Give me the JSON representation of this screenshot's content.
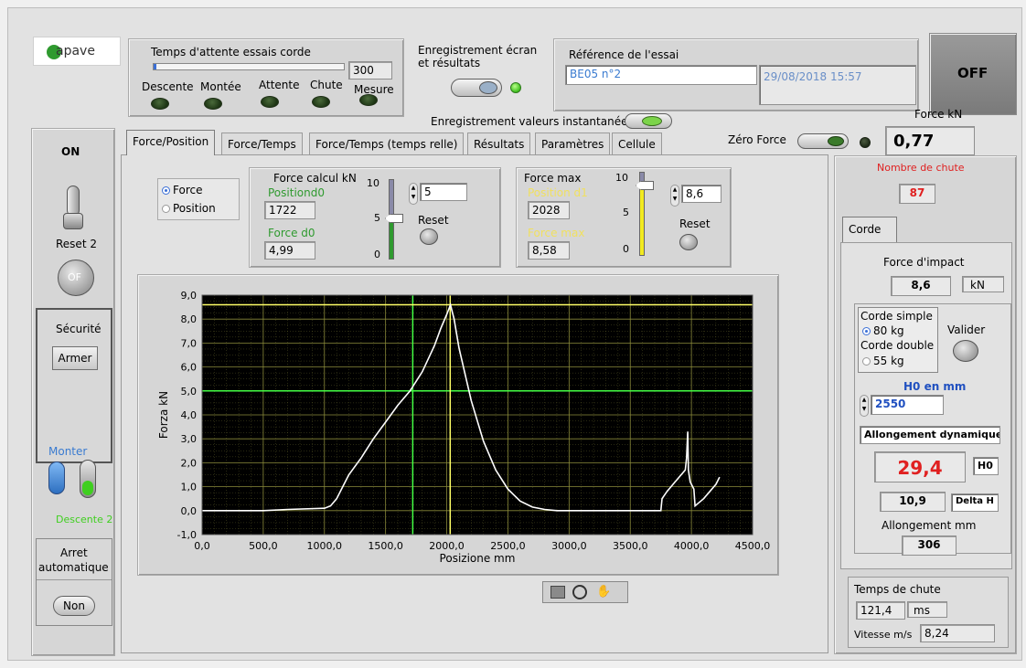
{
  "logo": {
    "text": "apave"
  },
  "wait_panel": {
    "title": "Temps d'attente essais corde",
    "value": "300",
    "leds": [
      "Descente",
      "Montée",
      "Attente",
      "Chute",
      "Mesure"
    ]
  },
  "recording": {
    "title_line1": "Enregistrement écran",
    "title_line2": "et résultats",
    "instant_label": "Enregistrement valeurs instantanées"
  },
  "reference": {
    "title": "Référence de l'essai",
    "code": "BE05 n°2",
    "datetime": "29/08/2018 15:57"
  },
  "off_button": "OFF",
  "zero_force": {
    "label": "Zéro Force"
  },
  "force_readout": {
    "label": "Force kN",
    "value": "0,77"
  },
  "left_panel": {
    "on_label": "ON",
    "reset_label": "Reset 2",
    "of_label": "OF",
    "security_label": "Sécurité",
    "arm_button": "Armer",
    "monter_label": "Monter",
    "descente_label": "Descente 2",
    "auto_stop_line1": "Arret",
    "auto_stop_line2": "automatique",
    "auto_stop_button": "Non"
  },
  "tabs": [
    "Force/Position",
    "Force/Temps",
    "Force/Temps (temps relle)",
    "Résultats",
    "Paramètres",
    "Cellule"
  ],
  "active_tab": 0,
  "mode": {
    "options": [
      "Force",
      "Position"
    ],
    "selected": "Force"
  },
  "force_calc": {
    "title": "Force calcul  kN",
    "position_label": "Positiond0",
    "position_value": "1722",
    "force_label": "Force d0",
    "force_value": "4,99",
    "slider_ticks": [
      "10",
      "5",
      "0"
    ],
    "slider_level": 0.5,
    "setpoint": "5",
    "reset_label": "Reset"
  },
  "force_max": {
    "title": "Force  max",
    "position_label": "Position d1",
    "position_value": "2028",
    "force_label": "Force max",
    "force_value": "8,58",
    "slider_ticks": [
      "10",
      "5",
      "0"
    ],
    "slider_level": 0.86,
    "setpoint": "8,6",
    "reset_label": "Reset"
  },
  "right_panel": {
    "drops_label": "Nombre de chute",
    "drops_value": "87",
    "tab_label": "Corde",
    "impact_label": "Force d'impact",
    "impact_value": "8,6",
    "impact_unit": "kN",
    "rope_single": "Corde simple",
    "rope_single_mass": "80 kg",
    "rope_double": "Corde double",
    "rope_double_mass": "55 kg",
    "rope_selected": "80 kg",
    "validate_label": "Valider",
    "h0_label": "H0 en mm",
    "h0_value": "2550",
    "elong_dyn_label": "Allongement dynamique",
    "elong_dyn_value": "29,4",
    "h0_unit": "H0",
    "delta_value": "10,9",
    "delta_unit": "Delta H",
    "elong_mm_label": "Allongement mm",
    "elong_mm_value": "306",
    "fall_time_label": "Temps de chute",
    "fall_time_value": "121,4",
    "fall_time_unit": "ms",
    "speed_label": "Vitesse m/s",
    "speed_value": "8,24"
  },
  "colors": {
    "plot_bg": "#000000",
    "grid": "#8a8a3a",
    "curve": "#ffffff",
    "cursor_green": "#44ff44",
    "cursor_yellow": "#ffff66",
    "red_value": "#e02020",
    "blue_label": "#2050c0"
  },
  "chart_data": {
    "type": "line",
    "title": "",
    "xlabel": "Posizione mm",
    "ylabel": "Forza kN",
    "xlim": [
      0,
      4500
    ],
    "ylim": [
      -1,
      9
    ],
    "xticks": [
      "0,0",
      "500,0",
      "1000,0",
      "1500,0",
      "2000,0",
      "2500,0",
      "3000,0",
      "3500,0",
      "4000,0",
      "4500,0"
    ],
    "yticks": [
      "9,0",
      "8,0",
      "7,0",
      "6,0",
      "5,0",
      "4,0",
      "3,0",
      "2,0",
      "1,0",
      "0,0",
      "-1,0"
    ],
    "grid": true,
    "series": [
      {
        "x": [
          0,
          500,
          700,
          1000,
          1050,
          1100,
          1150,
          1200,
          1300,
          1400,
          1500,
          1600,
          1700,
          1800,
          1900,
          1950,
          2000,
          2030,
          2060,
          2100,
          2200,
          2300,
          2400,
          2500,
          2600,
          2700,
          2800,
          2900,
          3000,
          3200,
          3500,
          3750,
          3760,
          3800,
          3850,
          3900,
          3950,
          3960,
          3970,
          3975,
          3990,
          4020,
          4030,
          4100,
          4200,
          4230
        ],
        "y": [
          0.0,
          0.0,
          0.05,
          0.1,
          0.2,
          0.5,
          1.0,
          1.5,
          2.2,
          3.0,
          3.7,
          4.4,
          5.0,
          5.8,
          6.9,
          7.6,
          8.2,
          8.6,
          8.0,
          6.8,
          4.6,
          2.9,
          1.7,
          0.9,
          0.4,
          0.15,
          0.05,
          0.0,
          0.0,
          0.0,
          0.0,
          0.0,
          0.5,
          0.8,
          1.1,
          1.4,
          1.7,
          2.2,
          3.3,
          1.7,
          1.2,
          0.9,
          0.2,
          0.5,
          1.1,
          1.4
        ]
      }
    ],
    "cursors": [
      {
        "axis": "x",
        "value": 1722,
        "color": "green"
      },
      {
        "axis": "y",
        "value": 5.0,
        "color": "green"
      },
      {
        "axis": "x",
        "value": 2028,
        "color": "yellow"
      },
      {
        "axis": "y",
        "value": 8.6,
        "color": "yellow"
      }
    ]
  }
}
